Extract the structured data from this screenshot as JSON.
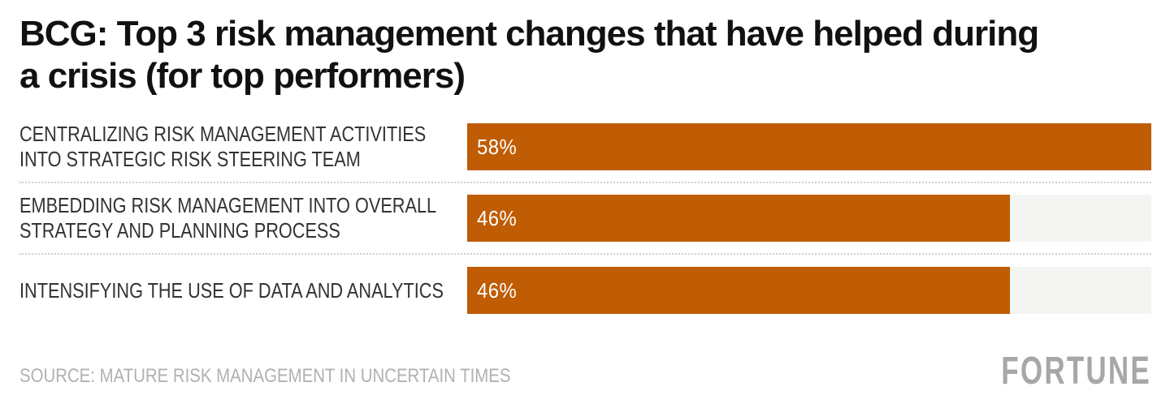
{
  "header": {
    "title": "BCG: Top 3 risk management changes that have helped during a crisis (for top performers)"
  },
  "chart_data": {
    "type": "bar",
    "orientation": "horizontal",
    "title": "BCG: Top 3 risk management changes that have helped during a crisis (for top performers)",
    "categories": [
      "CENTRALIZING RISK MANAGEMENT ACTIVITIES INTO STRATEGIC RISK STEERING TEAM",
      "EMBEDDING RISK MANAGEMENT INTO OVERALL STRATEGY AND PLANNING PROCESS",
      "INTENSIFYING THE USE OF DATA AND ANALYTICS"
    ],
    "values": [
      58,
      46,
      46
    ],
    "value_labels": [
      "58%",
      "46%",
      "46%"
    ],
    "xlim": [
      0,
      58
    ],
    "unit": "percent",
    "grid": false,
    "legend": false,
    "bar_color": "#bf5c04",
    "track_color": "#f4f4f2",
    "rows": [
      {
        "label": "CENTRALIZING RISK MANAGEMENT ACTIVITIES INTO STRATEGIC RISK STEERING TEAM",
        "value": 58,
        "value_label": "58%"
      },
      {
        "label": "EMBEDDING RISK MANAGEMENT INTO OVERALL STRATEGY AND PLANNING PROCESS",
        "value": 46,
        "value_label": "46%"
      },
      {
        "label": "INTENSIFYING THE USE OF DATA AND ANALYTICS",
        "value": 46,
        "value_label": "46%"
      }
    ]
  },
  "footer": {
    "source": "SOURCE: MATURE RISK MANAGEMENT IN UNCERTAIN TIMES",
    "brand": "FORTUNE"
  }
}
